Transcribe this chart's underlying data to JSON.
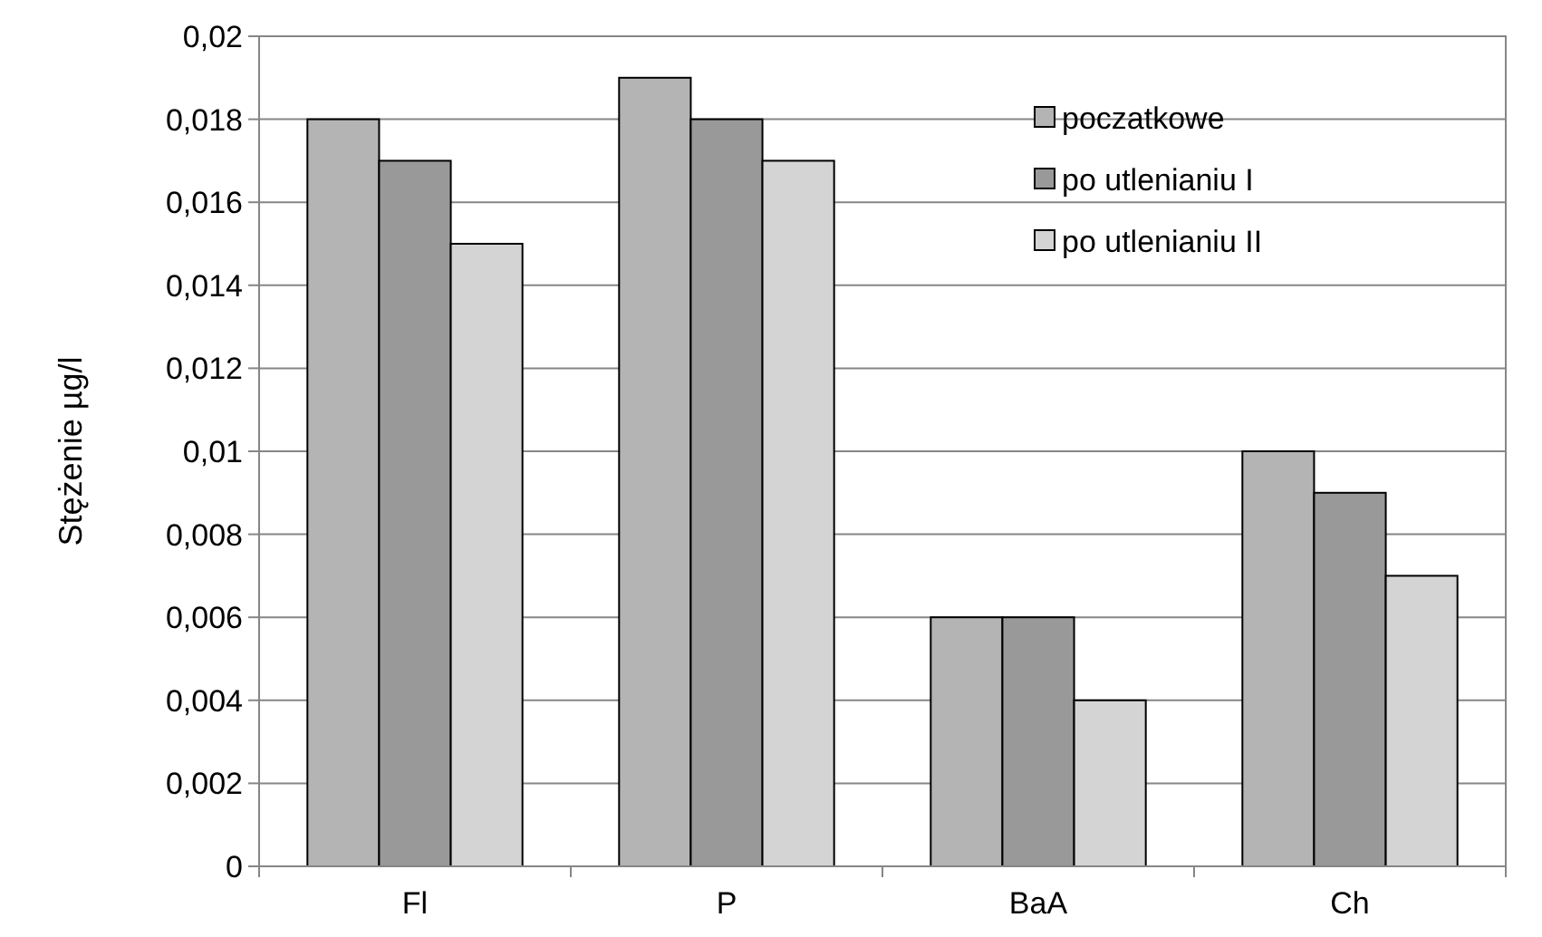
{
  "chart_data": {
    "type": "bar",
    "ylabel": "Stężenie µg/l",
    "categories": [
      "Fl",
      "P",
      "BaA",
      "Ch"
    ],
    "series": [
      {
        "name": "poczatkowe",
        "color": "#b4b4b4",
        "values": [
          0.018,
          0.019,
          0.006,
          0.01
        ]
      },
      {
        "name": "po utlenianiu I",
        "color": "#999999",
        "values": [
          0.017,
          0.018,
          0.006,
          0.009
        ]
      },
      {
        "name": "po utlenianiu II",
        "color": "#d4d4d4",
        "values": [
          0.015,
          0.017,
          0.004,
          0.007
        ]
      }
    ],
    "ylim": [
      0,
      0.02
    ],
    "yticks": [
      0,
      {
        "value": 0.002,
        "label": "0,002"
      },
      {
        "value": 0.004,
        "label": "0,004"
      },
      {
        "value": 0.006,
        "label": "0,006"
      },
      {
        "value": 0.008,
        "label": "0,008"
      },
      {
        "value": 0.01,
        "label": "0,01"
      },
      {
        "value": 0.012,
        "label": "0,012"
      },
      {
        "value": 0.014,
        "label": "0,014"
      },
      {
        "value": 0.016,
        "label": "0,016"
      },
      {
        "value": 0.018,
        "label": "0,018"
      },
      {
        "value": 0.02,
        "label": "0,02"
      }
    ],
    "grid": "y",
    "legend": "top right"
  }
}
